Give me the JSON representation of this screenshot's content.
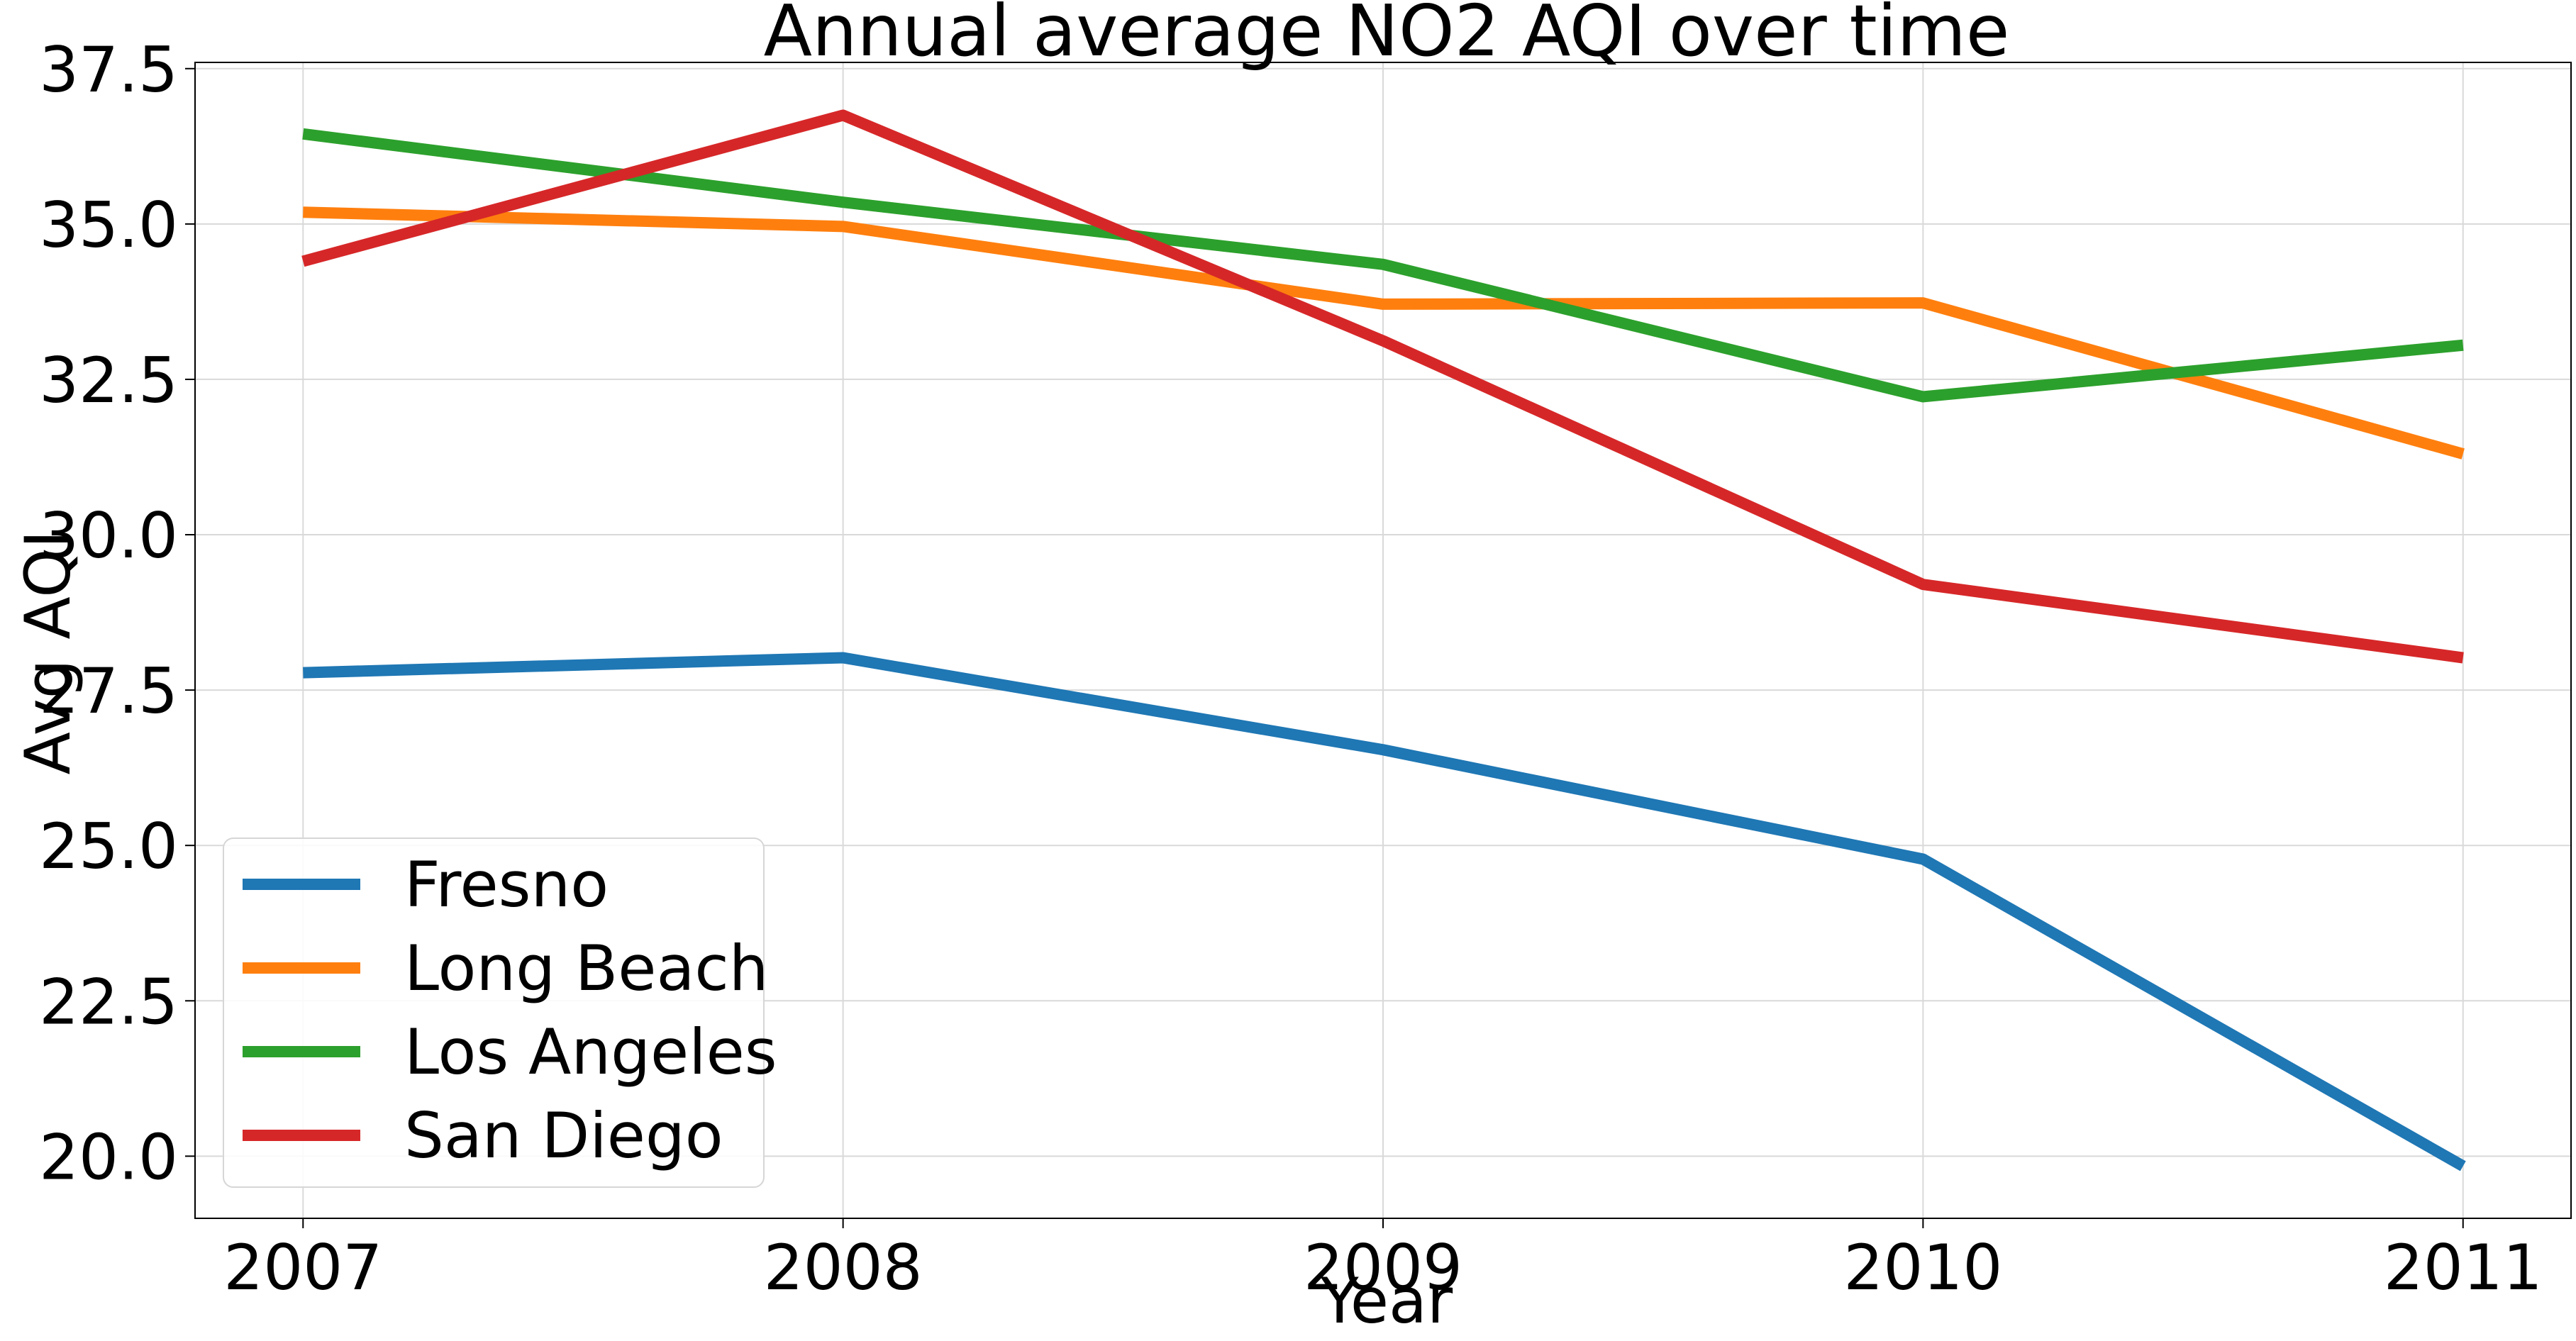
{
  "chart_data": {
    "type": "line",
    "title": "Annual average NO2 AQI over time",
    "xlabel": "Year",
    "ylabel": "Avg AQI",
    "x": [
      2007,
      2008,
      2009,
      2010,
      2011
    ],
    "x_tick_labels": [
      "2007",
      "2008",
      "2009",
      "2010",
      "2011"
    ],
    "xlim": [
      2006.8,
      2011.2
    ],
    "ylim": [
      19.0,
      37.6
    ],
    "y_ticks": [
      20.0,
      22.5,
      25.0,
      27.5,
      30.0,
      32.5,
      35.0,
      37.5
    ],
    "y_tick_labels": [
      "20.0",
      "22.5",
      "25.0",
      "27.5",
      "30.0",
      "32.5",
      "35.0",
      "37.5"
    ],
    "grid": true,
    "legend_position": "lower-left",
    "series": [
      {
        "name": "Fresno",
        "color": "#1f77b4",
        "values": [
          27.78,
          28.02,
          26.54,
          24.78,
          19.84
        ]
      },
      {
        "name": "Long Beach",
        "color": "#ff7f0e",
        "values": [
          35.19,
          34.96,
          33.71,
          33.73,
          31.3
        ]
      },
      {
        "name": "Los Angeles",
        "color": "#2ca02c",
        "values": [
          36.45,
          35.35,
          34.35,
          32.22,
          33.05
        ]
      },
      {
        "name": "San Diego",
        "color": "#d62728",
        "values": [
          34.4,
          36.75,
          33.12,
          29.2,
          28.02
        ]
      }
    ]
  }
}
